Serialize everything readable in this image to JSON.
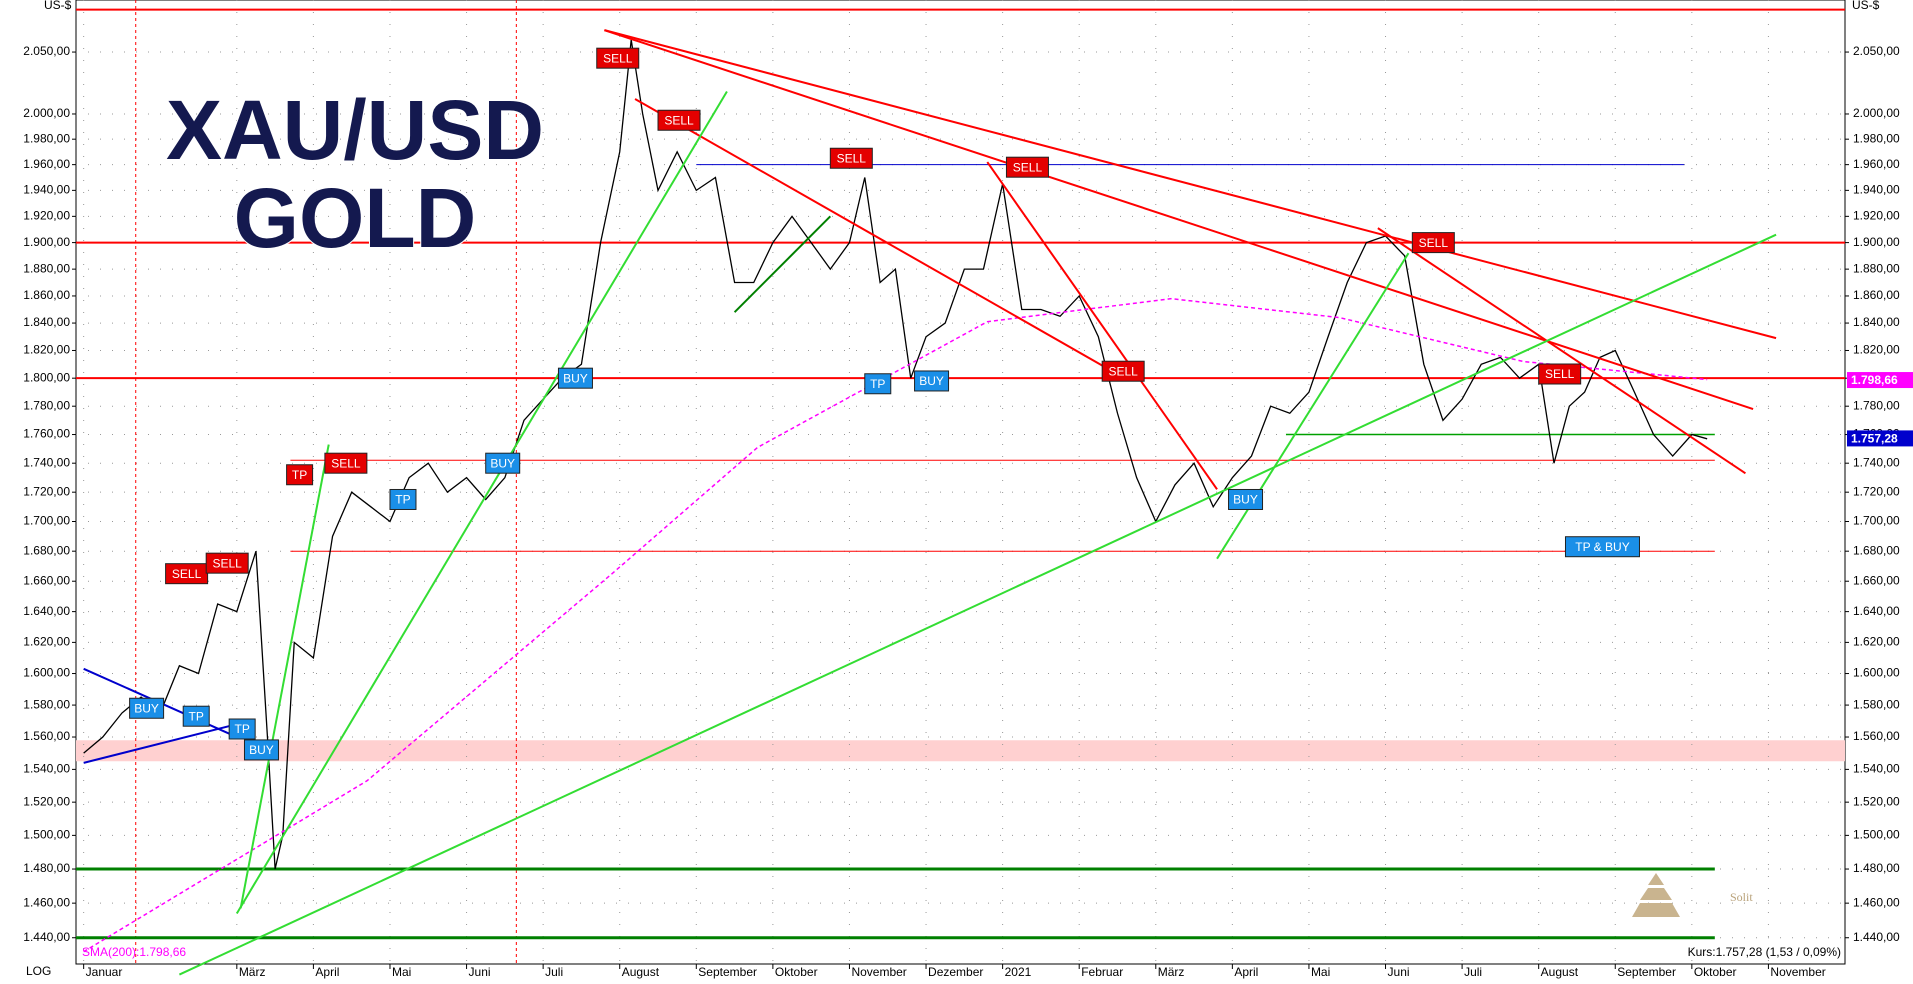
{
  "chart_data": {
    "type": "line",
    "title": [
      "XAU/USD",
      "GOLD"
    ],
    "y_unit": "US-$",
    "scale_label": "LOG",
    "log_scale": true,
    "grid": true,
    "xlim": [
      -0.1,
      23
    ],
    "ylim": [
      1425,
      2093
    ],
    "xticks": [
      {
        "value": 0,
        "label": "Januar"
      },
      {
        "value": 2,
        "label": "März"
      },
      {
        "value": 3,
        "label": "April"
      },
      {
        "value": 4,
        "label": "Mai"
      },
      {
        "value": 5,
        "label": "Juni"
      },
      {
        "value": 6,
        "label": "Juli"
      },
      {
        "value": 7,
        "label": "August"
      },
      {
        "value": 8,
        "label": "September"
      },
      {
        "value": 9,
        "label": "Oktober"
      },
      {
        "value": 10,
        "label": "November"
      },
      {
        "value": 11,
        "label": "Dezember"
      },
      {
        "value": 12,
        "label": "2021"
      },
      {
        "value": 13,
        "label": "Februar"
      },
      {
        "value": 14,
        "label": "März"
      },
      {
        "value": 15,
        "label": "April"
      },
      {
        "value": 16,
        "label": "Mai"
      },
      {
        "value": 17,
        "label": "Juni"
      },
      {
        "value": 18,
        "label": "Juli"
      },
      {
        "value": 19,
        "label": "August"
      },
      {
        "value": 20,
        "label": "September"
      },
      {
        "value": 21,
        "label": "Oktober"
      },
      {
        "value": 22,
        "label": "November"
      }
    ],
    "yticks": [
      {
        "value": 1440,
        "label": "1.440,00"
      },
      {
        "value": 1460,
        "label": "1.460,00"
      },
      {
        "value": 1480,
        "label": "1.480,00"
      },
      {
        "value": 1500,
        "label": "1.500,00"
      },
      {
        "value": 1520,
        "label": "1.520,00"
      },
      {
        "value": 1540,
        "label": "1.540,00"
      },
      {
        "value": 1560,
        "label": "1.560,00"
      },
      {
        "value": 1580,
        "label": "1.580,00"
      },
      {
        "value": 1600,
        "label": "1.600,00"
      },
      {
        "value": 1620,
        "label": "1.620,00"
      },
      {
        "value": 1640,
        "label": "1.640,00"
      },
      {
        "value": 1660,
        "label": "1.660,00"
      },
      {
        "value": 1680,
        "label": "1.680,00"
      },
      {
        "value": 1700,
        "label": "1.700,00"
      },
      {
        "value": 1720,
        "label": "1.720,00"
      },
      {
        "value": 1740,
        "label": "1.740,00"
      },
      {
        "value": 1760,
        "label": "1.760,00"
      },
      {
        "value": 1780,
        "label": "1.780,00"
      },
      {
        "value": 1800,
        "label": "1.800,00"
      },
      {
        "value": 1820,
        "label": "1.820,00"
      },
      {
        "value": 1840,
        "label": "1.840,00"
      },
      {
        "value": 1860,
        "label": "1.860,00"
      },
      {
        "value": 1880,
        "label": "1.880,00"
      },
      {
        "value": 1900,
        "label": "1.900,00"
      },
      {
        "value": 1920,
        "label": "1.920,00"
      },
      {
        "value": 1940,
        "label": "1.940,00"
      },
      {
        "value": 1960,
        "label": "1.960,00"
      },
      {
        "value": 1980,
        "label": "1.980,00"
      },
      {
        "value": 2000,
        "label": "2.000,00"
      },
      {
        "value": 2050,
        "label": "2.050,00"
      }
    ],
    "series": [
      {
        "color": "#000000",
        "x": [
          0,
          0.25,
          0.5,
          0.75,
          1,
          1.25,
          1.5,
          1.75,
          2,
          2.25,
          2.4,
          2.5,
          2.6,
          2.75,
          3,
          3.25,
          3.5,
          3.75,
          4,
          4.25,
          4.5,
          4.75,
          5,
          5.25,
          5.5,
          5.75,
          6,
          6.25,
          6.5,
          6.75,
          7,
          7.15,
          7.3,
          7.5,
          7.75,
          8,
          8.25,
          8.5,
          8.75,
          9,
          9.25,
          9.5,
          9.75,
          10,
          10.2,
          10.4,
          10.6,
          10.8,
          11,
          11.25,
          11.5,
          11.75,
          12,
          12.25,
          12.5,
          12.75,
          13,
          13.25,
          13.5,
          13.75,
          14,
          14.25,
          14.5,
          14.75,
          15,
          15.25,
          15.5,
          15.75,
          16,
          16.25,
          16.5,
          16.75,
          17,
          17.25,
          17.5,
          17.75,
          18,
          18.25,
          18.5,
          18.75,
          19,
          19.2,
          19.4,
          19.6,
          19.8,
          20,
          20.25,
          20.5,
          20.75,
          21,
          21.2
        ],
        "values": [
          1550,
          1560,
          1575,
          1585,
          1575,
          1605,
          1600,
          1645,
          1640,
          1680,
          1560,
          1480,
          1500,
          1620,
          1610,
          1690,
          1720,
          1710,
          1700,
          1730,
          1740,
          1720,
          1730,
          1715,
          1730,
          1770,
          1785,
          1800,
          1810,
          1900,
          1970,
          2060,
          2000,
          1940,
          1970,
          1940,
          1950,
          1870,
          1870,
          1900,
          1920,
          1900,
          1880,
          1900,
          1950,
          1870,
          1880,
          1800,
          1830,
          1840,
          1880,
          1880,
          1945,
          1850,
          1850,
          1845,
          1860,
          1830,
          1775,
          1730,
          1700,
          1725,
          1740,
          1710,
          1730,
          1745,
          1780,
          1775,
          1790,
          1830,
          1870,
          1900,
          1905,
          1890,
          1810,
          1770,
          1785,
          1810,
          1815,
          1800,
          1810,
          1740,
          1780,
          1790,
          1815,
          1820,
          1790,
          1760,
          1745,
          1760,
          1757
        ]
      },
      {
        "name": "SMA(200):1.798,66",
        "color": "#ff00ff",
        "dashed": true,
        "x": [
          0,
          3.7,
          6.9,
          8.8,
          11.8,
          14.2,
          16.4,
          18.8,
          21.2
        ],
        "values": [
          1432,
          1533,
          1665,
          1751,
          1841,
          1858,
          1844,
          1812,
          1799
        ]
      }
    ],
    "levels": [
      {
        "value": 2085,
        "color": "#ff0000",
        "width": 2,
        "from": -0.1,
        "to": 23
      },
      {
        "value": 1900,
        "color": "#ff0000",
        "width": 2,
        "from": -0.1,
        "to": 23
      },
      {
        "value": 1800,
        "color": "#ff0000",
        "width": 2,
        "from": -0.1,
        "to": 23
      },
      {
        "value": 1742,
        "color": "#ff0000",
        "width": 1,
        "from": 2.7,
        "to": 21.3
      },
      {
        "value": 1680,
        "color": "#ff0000",
        "width": 1,
        "from": 2.7,
        "to": 21.3
      },
      {
        "value": 1960,
        "color": "#0000cc",
        "width": 1,
        "from": 8.0,
        "to": 20.9
      },
      {
        "value": 1760,
        "color": "#00a000",
        "width": 1.5,
        "from": 15.7,
        "to": 21.3
      },
      {
        "value": 1480,
        "color": "#008000",
        "width": 3,
        "from": -0.1,
        "to": 21.3
      },
      {
        "value": 1440,
        "color": "#008000",
        "width": 3,
        "from": -0.1,
        "to": 21.3
      }
    ],
    "band": {
      "from": 1545,
      "to": 1558,
      "color": "#ffd0d0"
    },
    "vlines": [
      0.68,
      5.65
    ],
    "trendlines": [
      {
        "color": "#ff0000",
        "points": [
          [
            6.8,
            2068
          ],
          [
            22.1,
            1829
          ]
        ]
      },
      {
        "color": "#ff0000",
        "points": [
          [
            6.8,
            2068
          ],
          [
            21.8,
            1778
          ]
        ]
      },
      {
        "color": "#ff0000",
        "points": [
          [
            7.2,
            2012
          ],
          [
            13.4,
            1806
          ]
        ]
      },
      {
        "color": "#ff0000",
        "points": [
          [
            11.8,
            1962
          ],
          [
            14.8,
            1722
          ]
        ]
      },
      {
        "color": "#ff0000",
        "points": [
          [
            16.9,
            1911
          ],
          [
            21.7,
            1733
          ]
        ]
      },
      {
        "color": "#33dd33",
        "points": [
          [
            1.25,
            1419
          ],
          [
            22.1,
            1906
          ]
        ]
      },
      {
        "color": "#33dd33",
        "points": [
          [
            2.0,
            1454
          ],
          [
            8.4,
            2018
          ]
        ]
      },
      {
        "color": "#33dd33",
        "points": [
          [
            2.05,
            1457
          ],
          [
            3.2,
            1753
          ]
        ]
      },
      {
        "color": "#33dd33",
        "points": [
          [
            14.8,
            1675
          ],
          [
            17.3,
            1892
          ]
        ]
      },
      {
        "color": "#008000",
        "points": [
          [
            8.5,
            1848
          ],
          [
            9.75,
            1920
          ]
        ]
      },
      {
        "color": "#0000cc",
        "points": [
          [
            0,
            1603
          ],
          [
            2.0,
            1560
          ]
        ]
      },
      {
        "color": "#0000cc",
        "points": [
          [
            0,
            1544
          ],
          [
            2.0,
            1568
          ]
        ]
      }
    ],
    "annotations": [
      {
        "text": "SELL",
        "kind": "sell",
        "x": 6.7,
        "y": 2045
      },
      {
        "text": "SELL",
        "kind": "sell",
        "x": 7.5,
        "y": 1995
      },
      {
        "text": "SELL",
        "kind": "sell",
        "x": 9.75,
        "y": 1965
      },
      {
        "text": "SELL",
        "kind": "sell",
        "x": 12.05,
        "y": 1958
      },
      {
        "text": "SELL",
        "kind": "sell",
        "x": 17.35,
        "y": 1900
      },
      {
        "text": "SELL",
        "kind": "sell",
        "x": 13.3,
        "y": 1805
      },
      {
        "text": "SELL",
        "kind": "sell",
        "x": 19.0,
        "y": 1803
      },
      {
        "text": "SELL",
        "kind": "sell",
        "x": 1.07,
        "y": 1665
      },
      {
        "text": "SELL",
        "kind": "sell",
        "x": 1.6,
        "y": 1672
      },
      {
        "text": "SELL",
        "kind": "sell",
        "x": 3.15,
        "y": 1740
      },
      {
        "text": "TP",
        "kind": "sell",
        "x": 2.65,
        "y": 1732
      },
      {
        "text": "BUY",
        "kind": "buy",
        "x": 6.2,
        "y": 1800
      },
      {
        "text": "BUY",
        "kind": "buy",
        "x": 5.25,
        "y": 1740
      },
      {
        "text": "BUY",
        "kind": "buy",
        "x": 10.85,
        "y": 1798
      },
      {
        "text": "TP",
        "kind": "buy",
        "x": 10.2,
        "y": 1796
      },
      {
        "text": "TP",
        "kind": "buy",
        "x": 4.0,
        "y": 1715
      },
      {
        "text": "BUY",
        "kind": "buy",
        "x": 14.95,
        "y": 1715
      },
      {
        "text": "TP & BUY",
        "kind": "buy",
        "x": 19.35,
        "y": 1683
      },
      {
        "text": "BUY",
        "kind": "buy",
        "x": 0.6,
        "y": 1578
      },
      {
        "text": "TP",
        "kind": "buy",
        "x": 1.3,
        "y": 1573
      },
      {
        "text": "TP",
        "kind": "buy",
        "x": 1.9,
        "y": 1565
      },
      {
        "text": "BUY",
        "kind": "buy",
        "x": 2.1,
        "y": 1552
      }
    ],
    "price_badges": [
      {
        "value": 1798.66,
        "label": "1.798,66",
        "color": "#ff00ff"
      },
      {
        "value": 1757.28,
        "label": "1.757,28",
        "color": "#0000cc"
      }
    ],
    "quote": "Kurs:1.757,28 (1,53 / 0,09%)",
    "logo": "Solit"
  }
}
